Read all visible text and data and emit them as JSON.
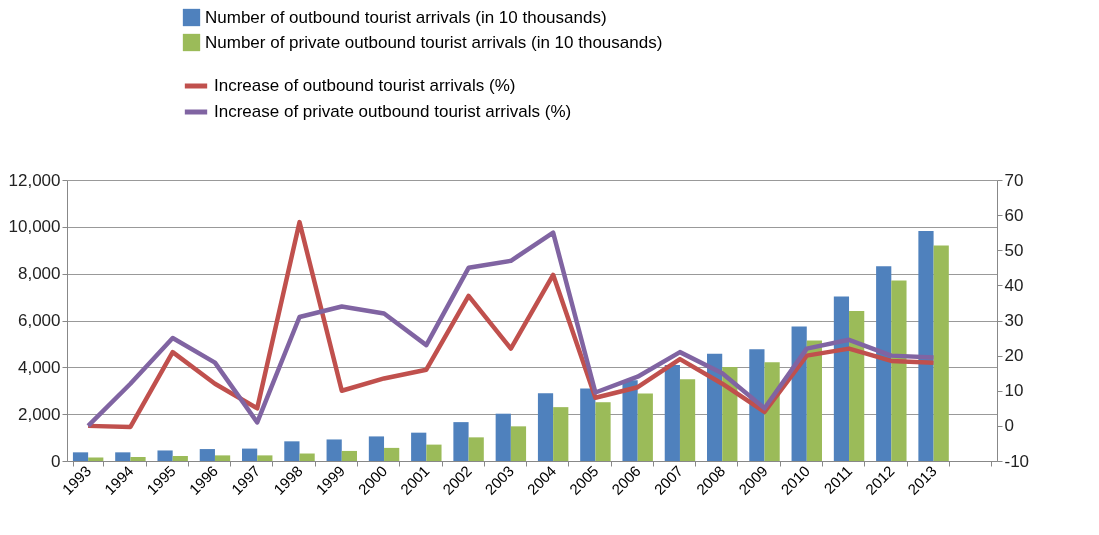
{
  "chart_data": {
    "type": "bar",
    "categories": [
      "1993",
      "1994",
      "1995",
      "1996",
      "1997",
      "1998",
      "1999",
      "2000",
      "2001",
      "2002",
      "2003",
      "2004",
      "2005",
      "2006",
      "2007",
      "2008",
      "2009",
      "2010",
      "2011",
      "2012",
      "2013",
      null
    ],
    "series": [
      {
        "name": "Number of outbound tourist arrivals (in 10 thousands)",
        "color": "#4f81bd",
        "values": [
          370,
          370,
          450,
          510,
          530,
          840,
          920,
          1050,
          1210,
          1660,
          2020,
          2890,
          3100,
          3450,
          4100,
          4580,
          4770,
          5740,
          7030,
          8320,
          9820,
          null
        ]
      },
      {
        "name": "Number of private outbound tourist arrivals (in 10 thousands)",
        "color": "#9bbb59",
        "values": [
          150,
          170,
          210,
          240,
          240,
          320,
          430,
          560,
          700,
          1010,
          1480,
          2300,
          2510,
          2880,
          3490,
          4010,
          4220,
          5150,
          6410,
          7710,
          9200,
          null
        ]
      },
      {
        "name": "Increase of outbound tourist arrivals (%)",
        "type": "line",
        "axis": "y2",
        "color": "#c0504d",
        "values": [
          0,
          -0.3,
          21,
          12,
          5,
          58,
          10,
          13.5,
          16,
          37,
          22,
          43,
          8,
          11,
          19,
          12,
          4,
          20,
          22,
          18.5,
          18,
          null
        ]
      },
      {
        "name": "Increase of private outbound tourist arrivals (%)",
        "type": "line",
        "axis": "y2",
        "color": "#8064a2",
        "values": [
          0,
          12,
          25,
          18,
          1,
          31,
          34,
          32,
          23,
          45,
          47,
          55,
          9.5,
          14,
          21,
          15,
          5,
          22,
          24.5,
          20,
          19.5,
          null
        ]
      }
    ],
    "ylim": [
      0,
      12000
    ],
    "yticks": [
      0,
      {
        "value": 2000,
        "label": "2,000"
      },
      {
        "value": 4000,
        "label": "4,000"
      },
      {
        "value": 6000,
        "label": "6,000"
      },
      {
        "value": 8000,
        "label": "8,000"
      },
      {
        "value": 10000,
        "label": "10,000"
      },
      {
        "value": 12000,
        "label": "12,000"
      }
    ],
    "y2lim": [
      -10,
      70
    ],
    "y2ticks": [
      -10,
      0,
      10,
      20,
      30,
      40,
      50,
      60,
      70
    ],
    "grid": "y",
    "legend": "top"
  }
}
